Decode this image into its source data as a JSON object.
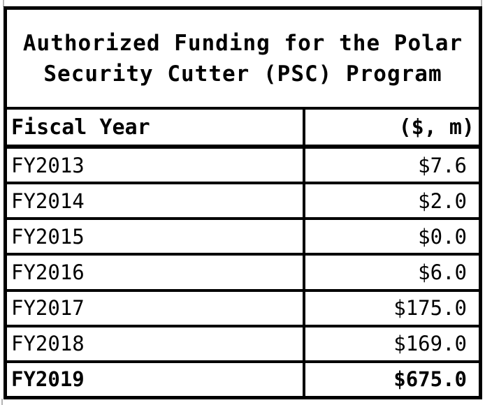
{
  "chart_data": {
    "type": "table",
    "title": "Authorized Funding for the Polar Security Cutter (PSC) Program",
    "columns": [
      "Fiscal Year",
      "($, m)"
    ],
    "rows": [
      [
        "FY2013",
        7.6
      ],
      [
        "FY2014",
        2.0
      ],
      [
        "FY2015",
        0.0
      ],
      [
        "FY2016",
        6.0
      ],
      [
        "FY2017",
        175.0
      ],
      [
        "FY2018",
        169.0
      ],
      [
        "FY2019",
        675.0
      ]
    ],
    "emphasized_row": "FY2019",
    "layout_hints": "bold monospace text, heavy black grid borders, amounts right-aligned"
  },
  "table": {
    "title_lines": [
      "Authorized Funding for the Polar",
      "Security Cutter (PSC) Program"
    ],
    "header": {
      "fiscal_year": "Fiscal Year",
      "amount": "($, m)"
    },
    "rows": [
      {
        "year": "FY2013",
        "amount": "$7.6"
      },
      {
        "year": "FY2014",
        "amount": "$2.0"
      },
      {
        "year": "FY2015",
        "amount": "$0.0"
      },
      {
        "year": "FY2016",
        "amount": "$6.0"
      },
      {
        "year": "FY2017",
        "amount": "$175.0"
      },
      {
        "year": "FY2018",
        "amount": "$169.0"
      },
      {
        "year": "FY2019",
        "amount": "$675.0"
      }
    ],
    "colors": {
      "border": "#000000",
      "text": "#000000",
      "background": "#ffffff"
    }
  }
}
